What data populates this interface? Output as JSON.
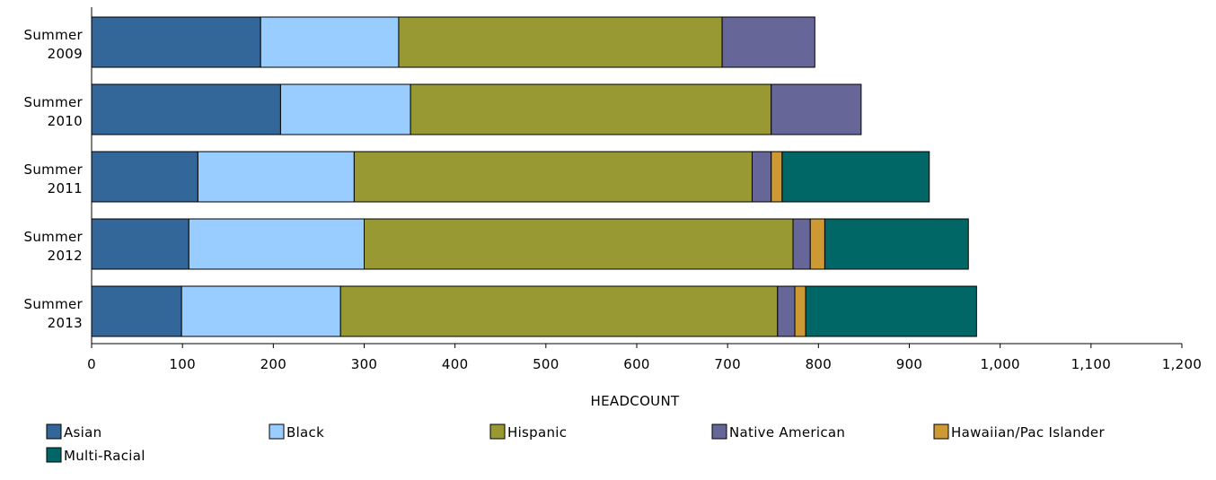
{
  "chart_data": {
    "type": "bar",
    "orientation": "horizontal",
    "stacked": true,
    "title": "",
    "xlabel": "HEADCOUNT",
    "ylabel": "",
    "xlim": [
      0,
      1200
    ],
    "xticks": [
      0,
      100,
      200,
      300,
      400,
      500,
      600,
      700,
      800,
      900,
      1000,
      1100,
      1200
    ],
    "xtick_labels": [
      "0",
      "100",
      "200",
      "300",
      "400",
      "500",
      "600",
      "700",
      "800",
      "900",
      "1,000",
      "1,100",
      "1,200"
    ],
    "grid": false,
    "legend_position": "bottom",
    "categories": [
      [
        "Summer",
        "2009"
      ],
      [
        "Summer",
        "2010"
      ],
      [
        "Summer",
        "2011"
      ],
      [
        "Summer",
        "2012"
      ],
      [
        "Summer",
        "2013"
      ]
    ],
    "series": [
      {
        "name": "Asian",
        "color": "#336699",
        "values": [
          186,
          208,
          117,
          107,
          99
        ]
      },
      {
        "name": "Black",
        "color": "#99CCFF",
        "values": [
          152,
          143,
          172,
          193,
          175
        ]
      },
      {
        "name": "Hispanic",
        "color": "#999933",
        "values": [
          356,
          397,
          438,
          472,
          481
        ]
      },
      {
        "name": "Native American",
        "color": "#666699",
        "values": [
          102,
          99,
          21,
          19,
          19
        ]
      },
      {
        "name": "Hawaiian/Pac Islander",
        "color": "#CC9933",
        "values": [
          0,
          0,
          12,
          16,
          12
        ]
      },
      {
        "name": "Multi-Racial",
        "color": "#006666",
        "values": [
          0,
          0,
          162,
          158,
          188
        ]
      }
    ]
  }
}
